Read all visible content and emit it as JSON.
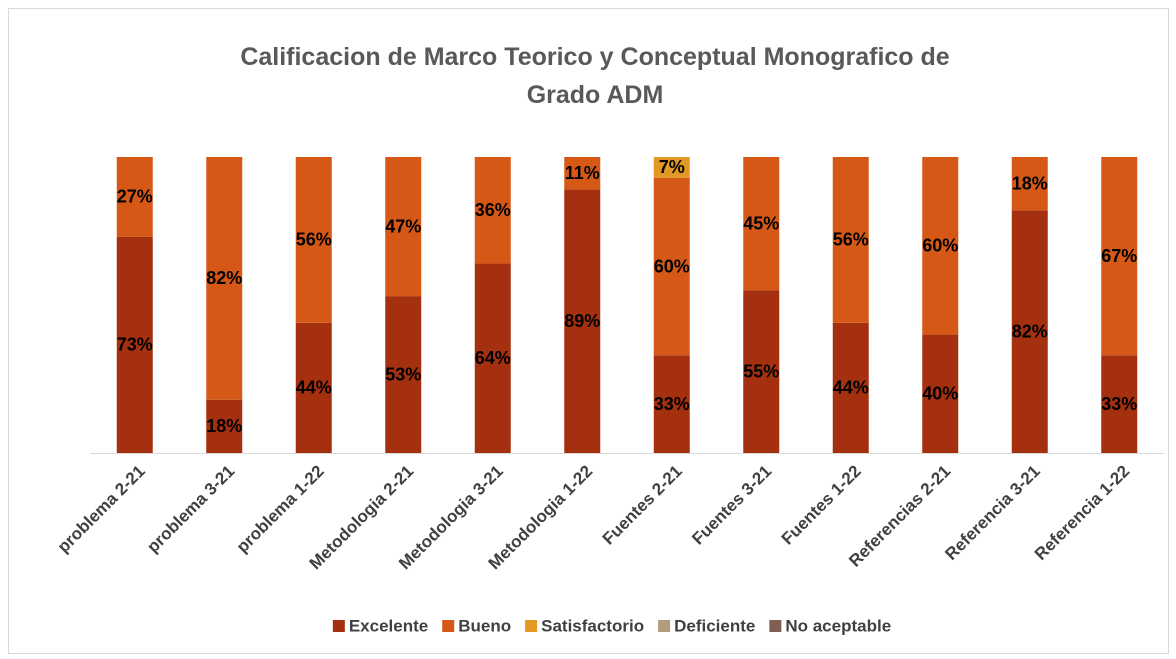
{
  "chart_data": {
    "type": "stacked_bar",
    "title": "Calificacion de Marco Teorico y Conceptual Monografico de Grado ADM",
    "categories": [
      "problema 2-21",
      "problema 3-21",
      "problema 1-22",
      "Metodologia 2-21",
      "Metodologia 3-21",
      "Metodologia 1-22",
      "Fuentes 2-21",
      "Fuentes 3-21",
      "Fuentes 1-22",
      "Referencias 2-21",
      "Referencia 3-21",
      "Referencia 1-22"
    ],
    "ylim": [
      0,
      100
    ],
    "legend": "bottom",
    "series": [
      {
        "name": "Excelente",
        "color": "#a5300f",
        "values": [
          73,
          18,
          44,
          53,
          64,
          89,
          33,
          55,
          44,
          40,
          82,
          33
        ],
        "value_labels": [
          "73%",
          "18%",
          "44%",
          "53%",
          "64%",
          "89%",
          "33%",
          "55%",
          "44%",
          "40%",
          "82%",
          "33%"
        ]
      },
      {
        "name": "Bueno",
        "color": "#d55816",
        "values": [
          27,
          82,
          56,
          47,
          36,
          11,
          60,
          45,
          56,
          60,
          18,
          67
        ],
        "value_labels": [
          "27%",
          "82%",
          "56%",
          "47%",
          "36%",
          "11%",
          "60%",
          "45%",
          "56%",
          "60%",
          "18%",
          "67%"
        ]
      },
      {
        "name": "Satisfactorio",
        "color": "#e19825",
        "values": [
          null,
          null,
          null,
          null,
          null,
          null,
          7,
          null,
          null,
          null,
          null,
          null
        ],
        "value_labels": [
          null,
          null,
          null,
          null,
          null,
          null,
          "7%",
          null,
          null,
          null,
          null,
          null
        ]
      },
      {
        "name": "Deficiente",
        "color": "#b19c7d",
        "values": [
          null,
          null,
          null,
          null,
          null,
          null,
          null,
          null,
          null,
          null,
          null,
          null
        ]
      },
      {
        "name": "No aceptable",
        "color": "#7f5f52",
        "values": [
          null,
          null,
          null,
          null,
          null,
          null,
          null,
          null,
          null,
          null,
          null,
          null
        ]
      }
    ]
  }
}
